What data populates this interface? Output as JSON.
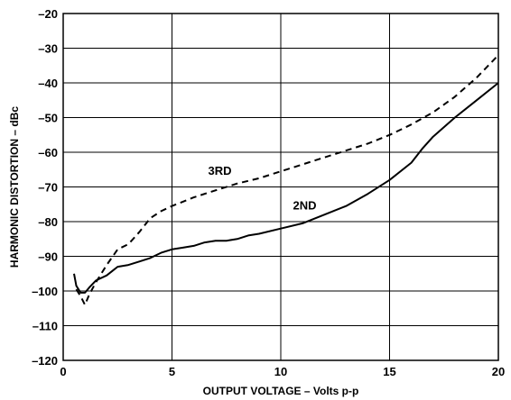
{
  "chart_data": {
    "type": "line",
    "xlabel": "OUTPUT VOLTAGE – Volts p-p",
    "ylabel": "HARMONIC DISTORTION – dBc",
    "xlim": [
      0,
      20
    ],
    "ylim": [
      -120,
      -20
    ],
    "x_ticks": [
      "0",
      "5",
      "10",
      "15",
      "20"
    ],
    "y_ticks": [
      "–20",
      "–30",
      "–40",
      "–50",
      "–60",
      "–70",
      "–80",
      "–90",
      "–100",
      "–110",
      "–120"
    ],
    "grid": true,
    "series": [
      {
        "name": "2ND",
        "style": "solid",
        "x": [
          0.5,
          0.6,
          0.8,
          1.0,
          1.2,
          1.5,
          2.0,
          2.5,
          3.0,
          3.5,
          4.0,
          4.5,
          5.0,
          5.5,
          6.0,
          6.5,
          7.0,
          7.5,
          8.0,
          8.5,
          9.0,
          10.0,
          11.0,
          12.0,
          13.0,
          14.0,
          15.0,
          16.0,
          16.5,
          17.0,
          18.0,
          19.0,
          20.0
        ],
        "values": [
          -95,
          -98.5,
          -100.5,
          -100.5,
          -99,
          -97,
          -95.5,
          -93,
          -92.5,
          -91.5,
          -90.5,
          -89,
          -88,
          -87.5,
          -87,
          -86,
          -85.5,
          -85.5,
          -85,
          -84,
          -83.5,
          -82,
          -80.5,
          -78,
          -75.5,
          -72,
          -68,
          -63,
          -59,
          -55.5,
          -50,
          -45,
          -40
        ]
      },
      {
        "name": "3RD",
        "style": "dashed",
        "x": [
          0.6,
          0.8,
          1.0,
          1.2,
          1.5,
          2.0,
          2.5,
          3.0,
          3.5,
          4.0,
          4.5,
          5.0,
          6.0,
          7.0,
          8.0,
          9.0,
          10.0,
          11.0,
          12.0,
          13.0,
          14.0,
          15.0,
          16.0,
          17.0,
          18.0,
          19.0,
          20.0
        ],
        "values": [
          -99.5,
          -101.5,
          -104,
          -101,
          -97.5,
          -92.5,
          -88,
          -86.5,
          -83,
          -79,
          -77,
          -75.5,
          -73,
          -71,
          -69,
          -67.5,
          -65.5,
          -63.5,
          -61.5,
          -59.5,
          -57.5,
          -55,
          -52,
          -48.5,
          -44,
          -38.5,
          -32
        ]
      }
    ],
    "annotations": [
      {
        "text": "3RD",
        "x": 7.2,
        "y": -66.5
      },
      {
        "text": "2ND",
        "x": 11.1,
        "y": -76.5
      }
    ]
  }
}
